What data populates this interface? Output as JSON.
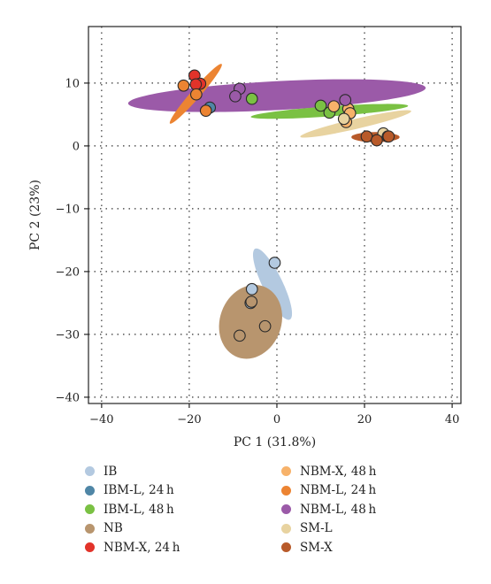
{
  "chart_data": {
    "type": "scatter",
    "title": "",
    "xlabel": "PC 1 (31.8%)",
    "ylabel": "PC 2 (23%)",
    "xlim": [
      -43,
      42
    ],
    "ylim": [
      -41,
      19
    ],
    "xticks": [
      -40,
      -20,
      0,
      20,
      40
    ],
    "yticks": [
      -40,
      -30,
      -20,
      -10,
      0,
      10
    ],
    "xtick_labels": [
      "−40",
      "−20",
      "0",
      "20",
      "40"
    ],
    "ytick_labels": [
      "−40",
      "−30",
      "−20",
      "−10",
      "0",
      "10"
    ],
    "grid": true,
    "legend_position": "bottom",
    "series": [
      {
        "name": "IB",
        "color": "#b3c9e0",
        "ellipse": {
          "cx": -1,
          "cy": -22,
          "rx": 9,
          "ry": 1.6,
          "angle": 64
        },
        "points": [
          [
            -0.5,
            -18.6
          ],
          [
            -5.7,
            -22.8
          ],
          [
            -6.0,
            -25.0
          ]
        ]
      },
      {
        "name": "IBM-L, 24 h",
        "color": "#4f86a6",
        "ellipse": null,
        "points": [
          [
            -15.3,
            6.1
          ]
        ]
      },
      {
        "name": "IBM-L, 48 h",
        "color": "#7ac143",
        "ellipse": {
          "cx": 12,
          "cy": 5.5,
          "rx": 18,
          "ry": 0.8,
          "angle": -4
        },
        "points": [
          [
            -5.7,
            7.5
          ],
          [
            10.0,
            6.4
          ],
          [
            12.0,
            5.3
          ]
        ]
      },
      {
        "name": "NB",
        "color": "#b8956e",
        "ellipse": {
          "cx": -6,
          "cy": -28,
          "rx": 7,
          "ry": 6,
          "angle": 20
        },
        "points": [
          [
            -8.5,
            -30.2
          ],
          [
            -2.7,
            -28.7
          ],
          [
            -5.8,
            -24.8
          ]
        ]
      },
      {
        "name": "NBM-X, 24 h",
        "color": "#e2332a",
        "ellipse": null,
        "points": [
          [
            -18.8,
            11.2
          ],
          [
            -17.5,
            9.9
          ],
          [
            -18.5,
            9.8
          ]
        ]
      },
      {
        "name": "NBM-X, 48 h",
        "color": "#f7b26a",
        "ellipse": null,
        "points": [
          [
            13.0,
            6.3
          ],
          [
            16.3,
            5.9
          ],
          [
            16.7,
            5.2
          ],
          [
            15.8,
            3.8
          ]
        ]
      },
      {
        "name": "NBM-L, 24 h",
        "color": "#ec8432",
        "ellipse": {
          "cx": -18.5,
          "cy": 8.3,
          "rx": 9,
          "ry": 0.75,
          "angle": -49
        },
        "points": [
          [
            -21.3,
            9.6
          ],
          [
            -18.4,
            8.2
          ],
          [
            -16.2,
            5.6
          ]
        ]
      },
      {
        "name": "NBM-L, 48 h",
        "color": "#9b5aa8",
        "ellipse": {
          "cx": 0,
          "cy": 8.0,
          "rx": 34,
          "ry": 2.3,
          "angle": -3
        },
        "points": [
          [
            -8.5,
            9.1
          ],
          [
            -9.5,
            7.9
          ],
          [
            15.6,
            7.3
          ]
        ]
      },
      {
        "name": "SM-L",
        "color": "#e8d3a0",
        "ellipse": {
          "cx": 18,
          "cy": 3.5,
          "rx": 13,
          "ry": 0.8,
          "angle": -13
        },
        "points": [
          [
            15.3,
            4.3
          ],
          [
            24.3,
            2.0
          ],
          [
            25.3,
            1.5
          ]
        ]
      },
      {
        "name": "SM-X",
        "color": "#b85a2a",
        "ellipse": {
          "cx": 22.5,
          "cy": 1.4,
          "rx": 5.5,
          "ry": 0.8,
          "angle": 0
        },
        "points": [
          [
            20.5,
            1.5
          ],
          [
            22.8,
            0.9
          ],
          [
            25.5,
            1.5
          ]
        ]
      }
    ]
  }
}
